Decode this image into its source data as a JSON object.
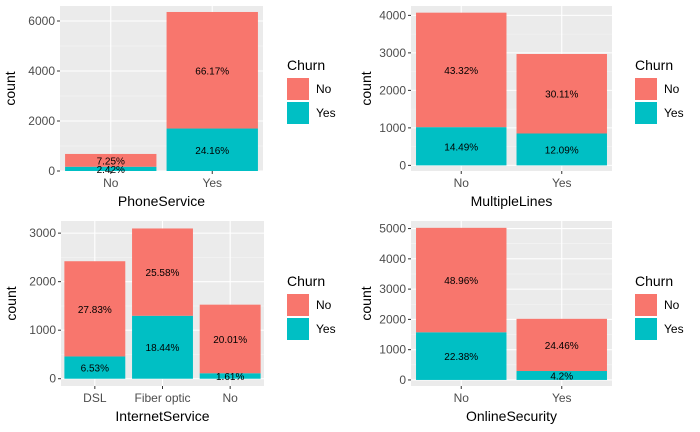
{
  "colors": {
    "no": "#F8766D",
    "yes": "#00BFC4",
    "panel": "#EBEBEB",
    "grid_major": "#FFFFFF",
    "grid_minor": "#F5F5F5"
  },
  "chart_data": [
    {
      "type": "bar",
      "stacked": true,
      "categories": [
        "No",
        "Yes"
      ],
      "series": [
        {
          "name": "No",
          "values": [
            512,
            4662
          ],
          "labels": [
            "7.25%",
            "66.17%"
          ]
        },
        {
          "name": "Yes",
          "values": [
            170,
            1699
          ],
          "labels": [
            "2.42%",
            "24.16%"
          ]
        }
      ],
      "xlabel": "PhoneService",
      "ylabel": "count",
      "ylim": [
        0,
        6600
      ],
      "yticks": [
        0,
        2000,
        4000,
        6000
      ],
      "legend_title": "Churn",
      "grid": true,
      "legend_position": "right"
    },
    {
      "type": "bar",
      "stacked": true,
      "categories": [
        "No",
        "Yes"
      ],
      "series": [
        {
          "name": "No",
          "values": [
            3053,
            2121
          ],
          "labels": [
            "43.32%",
            "30.11%"
          ]
        },
        {
          "name": "Yes",
          "values": [
            1019,
            850
          ],
          "labels": [
            "14.49%",
            "12.09%"
          ]
        }
      ],
      "xlabel": "MultipleLines",
      "ylabel": "count",
      "ylim": [
        -150,
        4250
      ],
      "yticks": [
        0,
        1000,
        2000,
        3000,
        4000
      ],
      "legend_title": "Churn",
      "grid": true,
      "legend_position": "right"
    },
    {
      "type": "bar",
      "stacked": true,
      "categories": [
        "DSL",
        "Fiber optic",
        "No"
      ],
      "series": [
        {
          "name": "No",
          "values": [
            1962,
            1799,
            1413
          ],
          "labels": [
            "27.83%",
            "25.58%",
            "20.01%"
          ]
        },
        {
          "name": "Yes",
          "values": [
            459,
            1297,
            113
          ],
          "labels": [
            "6.53%",
            "18.44%",
            "1.61%"
          ]
        }
      ],
      "xlabel": "InternetService",
      "ylabel": "count",
      "ylim": [
        -150,
        3250
      ],
      "yticks": [
        0,
        1000,
        2000,
        3000
      ],
      "legend_title": "Churn",
      "grid": true,
      "legend_position": "right"
    },
    {
      "type": "bar",
      "stacked": true,
      "categories": [
        "No",
        "Yes"
      ],
      "series": [
        {
          "name": "No",
          "values": [
            3450,
            1724
          ],
          "labels": [
            "48.96%",
            "24.46%"
          ]
        },
        {
          "name": "Yes",
          "values": [
            1574,
            295
          ],
          "labels": [
            "22.38%",
            "4.2%"
          ]
        }
      ],
      "xlabel": "OnlineSecurity",
      "ylabel": "count",
      "ylim": [
        -200,
        5250
      ],
      "yticks": [
        0,
        1000,
        2000,
        3000,
        4000,
        5000
      ],
      "legend_title": "Churn",
      "grid": true,
      "legend_position": "right"
    }
  ]
}
